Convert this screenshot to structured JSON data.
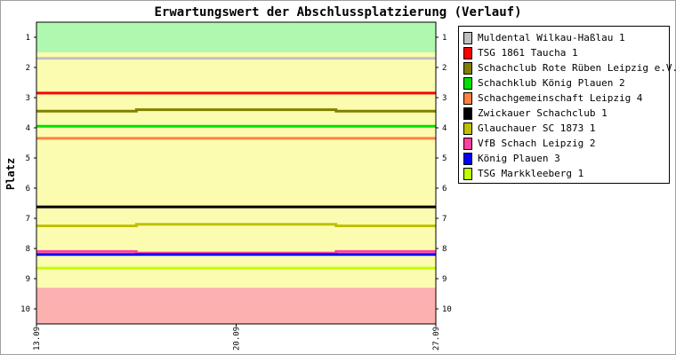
{
  "chart_data": {
    "type": "line",
    "title": "Erwartungswert der Abschlussplatzierung (Verlauf)",
    "ylabel": "Platz",
    "xlabel": "",
    "x": [
      "13.09",
      "20.09",
      "27.09"
    ],
    "x_ticks": [
      "13.09",
      "20.09",
      "27.09"
    ],
    "ylim": [
      10.5,
      0.5
    ],
    "y_ticks": [
      1,
      2,
      3,
      4,
      5,
      6,
      7,
      8,
      9,
      10
    ],
    "y_inverted": true,
    "bands": [
      {
        "from": 0.5,
        "to": 1.5,
        "color": "#b0f8b0"
      },
      {
        "from": 1.5,
        "to": 9.3,
        "color": "#fcfcb0"
      },
      {
        "from": 9.3,
        "to": 10.5,
        "color": "#fcb0b0"
      }
    ],
    "legend_position": "right",
    "series": [
      {
        "name": "Muldental Wilkau-Haßlau 1",
        "color": "#c0c0c0",
        "values": [
          1.7,
          1.7,
          1.7
        ]
      },
      {
        "name": "TSG 1861 Taucha 1",
        "color": "#ff0000",
        "values": [
          2.85,
          2.85,
          2.85
        ]
      },
      {
        "name": "Schachclub Rote Rüben Leipzig e.V. 1",
        "color": "#808000",
        "values": [
          3.45,
          3.4,
          3.45
        ]
      },
      {
        "name": "Schachklub König Plauen 2",
        "color": "#00e000",
        "values": [
          3.95,
          3.95,
          3.95
        ]
      },
      {
        "name": "Schachgemeinschaft Leipzig 4",
        "color": "#ff8040",
        "values": [
          4.35,
          4.35,
          4.35
        ]
      },
      {
        "name": "Zwickauer Schachclub 1",
        "color": "#000000",
        "values": [
          6.62,
          6.62,
          6.62
        ]
      },
      {
        "name": "Glauchauer SC 1873 1",
        "color": "#c0c000",
        "values": [
          7.25,
          7.2,
          7.25
        ]
      },
      {
        "name": "VfB Schach Leipzig 2",
        "color": "#ff40a0",
        "values": [
          8.1,
          8.15,
          8.1
        ]
      },
      {
        "name": "König Plauen 3",
        "color": "#0000ff",
        "values": [
          8.2,
          8.2,
          8.2
        ]
      },
      {
        "name": "TSG Markkleeberg 1",
        "color": "#c0ff00",
        "values": [
          8.65,
          8.65,
          8.65
        ]
      }
    ]
  }
}
